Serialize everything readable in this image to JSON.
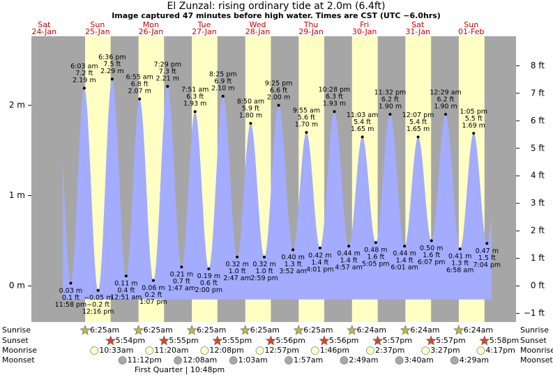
{
  "chart_data": {
    "type": "tide",
    "title": "El Zunzal: rising  ordinary tide at 2.0m (6.4ft)",
    "subtitle": "Image captured 47 minutes before high water. Times are CST (UTC −6.0hrs)",
    "ylim": [
      -0.4,
      2.765
    ],
    "yticks": [
      {
        "value": 0,
        "label": "0 m"
      },
      {
        "value": 1,
        "label": "1 m"
      },
      {
        "value": 2,
        "label": "2 m"
      }
    ],
    "y2lim": [
      -1.3123,
      9.0715
    ],
    "y2ticks": [
      {
        "value": -1,
        "label": "−1 ft"
      },
      {
        "value": 0,
        "label": "0 ft"
      },
      {
        "value": 1,
        "label": "1 ft"
      },
      {
        "value": 2,
        "label": "2 ft"
      },
      {
        "value": 3,
        "label": "3 ft"
      },
      {
        "value": 4,
        "label": "4 ft"
      },
      {
        "value": 5,
        "label": "5 ft"
      },
      {
        "value": 6,
        "label": "6 ft"
      },
      {
        "value": 7,
        "label": "7 ft"
      },
      {
        "value": 8,
        "label": "8 ft"
      }
    ],
    "row_labels": [
      "Sunrise",
      "Sunset",
      "Moonrise",
      "Moonset"
    ],
    "moon_phase": "First Quarter | 10:48pm",
    "days": [
      {
        "day": "Sat",
        "date": "24-Jan",
        "tides": [
          {
            "time": "11:58 pm",
            "height": 0.03,
            "height_label": "0.03 m",
            "feet_label": "0.1 ft"
          }
        ]
      },
      {
        "day": "Sun",
        "date": "25-Jan",
        "sunrise": "6:25am",
        "sunset": "5:54pm",
        "moonrise": "10:33am",
        "moonset": "11:12pm",
        "tides": [
          {
            "time": "6:03 am",
            "height": 2.19,
            "height_label": "2.19 m",
            "feet_label": "7.2 ft"
          },
          {
            "time": "12:16 pm",
            "height": -0.05,
            "height_label": "−0.05 m",
            "feet_label": "−0.2 ft"
          },
          {
            "time": "6:36 pm",
            "height": 2.29,
            "height_label": "2.29 m",
            "feet_label": "7.5 ft"
          }
        ]
      },
      {
        "day": "Mon",
        "date": "26-Jan",
        "sunrise": "6:25am",
        "sunset": "5:55pm",
        "moonrise": "11:20am",
        "tides": [
          {
            "time": "12:51 am",
            "height": 0.11,
            "height_label": "0.11 m",
            "feet_label": "0.4 ft"
          },
          {
            "time": "6:55 am",
            "height": 2.07,
            "height_label": "2.07 m",
            "feet_label": "6.8 ft"
          },
          {
            "time": "1:07 pm",
            "height": 0.06,
            "height_label": "0.06 m",
            "feet_label": "0.2 ft"
          },
          {
            "time": "7:29 pm",
            "height": 2.21,
            "height_label": "2.21 m",
            "feet_label": "7.3 ft"
          }
        ]
      },
      {
        "day": "Tue",
        "date": "27-Jan",
        "sunrise": "6:25am",
        "sunset": "5:55pm",
        "moonrise": "12:08pm",
        "moonset": "12:08am",
        "tides": [
          {
            "time": "1:47 am",
            "height": 0.21,
            "height_label": "0.21 m",
            "feet_label": "0.7 ft"
          },
          {
            "time": "7:51 am",
            "height": 1.93,
            "height_label": "1.93 m",
            "feet_label": "6.3 ft"
          },
          {
            "time": "2:00 pm",
            "height": 0.19,
            "height_label": "0.19 m",
            "feet_label": "0.6 ft"
          },
          {
            "time": "8:25 pm",
            "height": 2.1,
            "height_label": "2.10 m",
            "feet_label": "6.9 ft"
          }
        ]
      },
      {
        "day": "Wed",
        "date": "28-Jan",
        "sunrise": "6:25am",
        "sunset": "5:56pm",
        "moonrise": "12:57pm",
        "moonset": "1:03am",
        "tides": [
          {
            "time": "2:47 am",
            "height": 0.32,
            "height_label": "0.32 m",
            "feet_label": "1.0 ft"
          },
          {
            "time": "8:50 am",
            "height": 1.8,
            "height_label": "1.80 m",
            "feet_label": "5.9 ft"
          },
          {
            "time": "2:59 pm",
            "height": 0.32,
            "height_label": "0.32 m",
            "feet_label": "1.0 ft"
          },
          {
            "time": "9:25 pm",
            "height": 2.0,
            "height_label": "2.00 m",
            "feet_label": "6.6 ft"
          }
        ]
      },
      {
        "day": "Thu",
        "date": "29-Jan",
        "sunrise": "6:25am",
        "sunset": "5:56pm",
        "moonrise": "1:46pm",
        "moonset": "1:57am",
        "tides": [
          {
            "time": "3:52 am",
            "height": 0.4,
            "height_label": "0.40 m",
            "feet_label": "1.3 ft"
          },
          {
            "time": "9:55 am",
            "height": 1.7,
            "height_label": "1.70 m",
            "feet_label": "5.6 ft"
          },
          {
            "time": "4:01 pm",
            "height": 0.42,
            "height_label": "0.42 m",
            "feet_label": "1.4 ft"
          },
          {
            "time": "10:28 pm",
            "height": 1.93,
            "height_label": "1.93 m",
            "feet_label": "6.3 ft"
          }
        ]
      },
      {
        "day": "Fri",
        "date": "30-Jan",
        "sunrise": "6:24am",
        "sunset": "5:57pm",
        "moonrise": "2:37pm",
        "moonset": "2:49am",
        "tides": [
          {
            "time": "4:57 am",
            "height": 0.44,
            "height_label": "0.44 m",
            "feet_label": "1.4 ft"
          },
          {
            "time": "11:03 am",
            "height": 1.65,
            "height_label": "1.65 m",
            "feet_label": "5.4 ft"
          },
          {
            "time": "5:05 pm",
            "height": 0.48,
            "height_label": "0.48 m",
            "feet_label": "1.6 ft"
          },
          {
            "time": "11:32 pm",
            "height": 1.9,
            "height_label": "1.90 m",
            "feet_label": "6.2 ft"
          }
        ]
      },
      {
        "day": "Sat",
        "date": "31-Jan",
        "sunrise": "6:24am",
        "sunset": "5:57pm",
        "moonrise": "3:27pm",
        "moonset": "3:40am",
        "tides": [
          {
            "time": "6:01 am",
            "height": 0.44,
            "height_label": "0.44 m",
            "feet_label": "1.4 ft"
          },
          {
            "time": "12:07 pm",
            "height": 1.65,
            "height_label": "1.65 m",
            "feet_label": "5.4 ft"
          },
          {
            "time": "6:07 pm",
            "height": 0.5,
            "height_label": "0.50 m",
            "feet_label": "1.6 ft"
          }
        ]
      },
      {
        "day": "Sun",
        "date": "01-Feb",
        "sunrise": "6:24am",
        "sunset": "5:58pm",
        "moonrise": "4:17pm",
        "moonset": "4:29am",
        "tides": [
          {
            "time": "12:29 am",
            "height": 1.9,
            "height_label": "1.90 m",
            "feet_label": "6.2 ft"
          },
          {
            "time": "6:58 am",
            "height": 0.41,
            "height_label": "0.41 m",
            "feet_label": "1.3 ft"
          },
          {
            "time": "1:05 pm",
            "height": 1.69,
            "height_label": "1.69 m",
            "feet_label": "5.5 ft"
          },
          {
            "time": "7:04 pm",
            "height": 0.47,
            "height_label": "0.47 m",
            "feet_label": "1.5 ft"
          }
        ]
      }
    ]
  }
}
